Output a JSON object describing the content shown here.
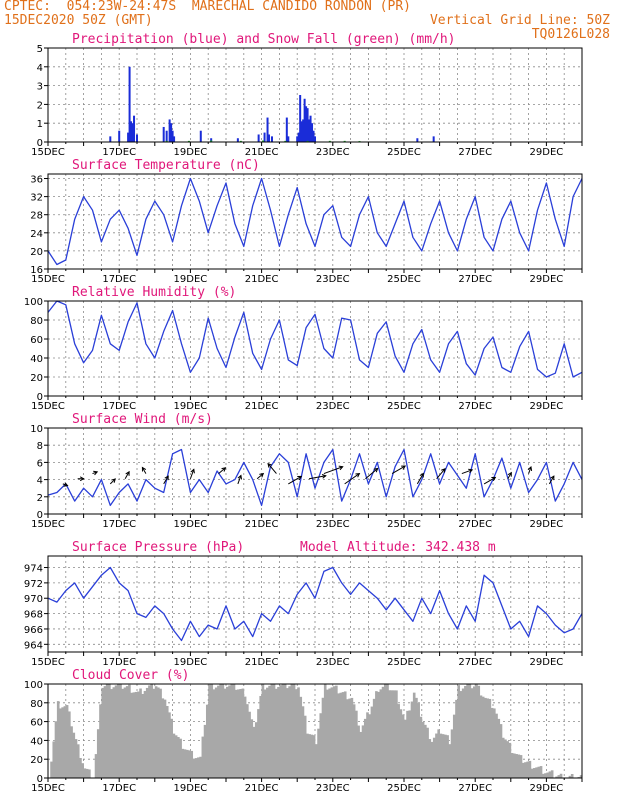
{
  "header": {
    "left1": "CPTEC:  054:23W-24:47S  MARECHAL CANDIDO RONDON (PR)",
    "left2": "15DEC2020 50Z (GMT)",
    "right2": "Vertical Grid Line: 50Z",
    "right3": "TQ0126L028"
  },
  "colors": {
    "title": "#e0177a",
    "line": "#2a3fd8",
    "precip": "#1a2cd8",
    "snow": "#1fae2a",
    "cloud": "#a8a8a8",
    "grid": "#8a8a8a",
    "header": "#e0701a"
  },
  "chart_data": [
    {
      "type": "bar",
      "title": "Precipitation (blue) and Snow Fall (green) (mm/h)",
      "x_ticks": [
        "15DEC",
        "17DEC",
        "19DEC",
        "21DEC",
        "23DEC",
        "25DEC",
        "27DEC",
        "29DEC"
      ],
      "ylim": [
        0,
        5
      ],
      "y_ticks": [
        "0",
        "1",
        "2",
        "3",
        "4",
        "5"
      ],
      "x_unit": "hours since 15DEC 00Z",
      "series": [
        {
          "name": "Precipitation",
          "color": "#1a2cd8",
          "points": [
            [
              42,
              0.3
            ],
            [
              48,
              0.6
            ],
            [
              54,
              0.5
            ],
            [
              55,
              4.0
            ],
            [
              56,
              1.1
            ],
            [
              57,
              1.0
            ],
            [
              58,
              1.4
            ],
            [
              60,
              0.4
            ],
            [
              78,
              0.8
            ],
            [
              80,
              0.6
            ],
            [
              82,
              1.2
            ],
            [
              83,
              1.0
            ],
            [
              84,
              0.6
            ],
            [
              85,
              0.3
            ],
            [
              103,
              0.6
            ],
            [
              110,
              0.2
            ],
            [
              128,
              0.2
            ],
            [
              142,
              0.4
            ],
            [
              146,
              0.5
            ],
            [
              148,
              1.3
            ],
            [
              149,
              0.4
            ],
            [
              151,
              0.3
            ],
            [
              161,
              1.3
            ],
            [
              162,
              0.3
            ],
            [
              168,
              0.3
            ],
            [
              169,
              0.5
            ],
            [
              170,
              2.5
            ],
            [
              171,
              1.1
            ],
            [
              172,
              1.2
            ],
            [
              173,
              2.3
            ],
            [
              174,
              1.9
            ],
            [
              175,
              1.8
            ],
            [
              176,
              1.2
            ],
            [
              177,
              1.4
            ],
            [
              178,
              1.0
            ],
            [
              179,
              0.6
            ],
            [
              180,
              0.3
            ],
            [
              249,
              0.2
            ],
            [
              260,
              0.3
            ]
          ]
        },
        {
          "name": "Snow Fall",
          "color": "#1fae2a",
          "points": [
            [
              80,
              0.06
            ],
            [
              95,
              0.06
            ],
            [
              110,
              0.08
            ],
            [
              130,
              0.06
            ],
            [
              145,
              0.08
            ],
            [
              160,
              0.06
            ],
            [
              175,
              0.06
            ],
            [
              190,
              0.06
            ],
            [
              200,
              0.06
            ],
            [
              210,
              0.05
            ]
          ]
        }
      ]
    },
    {
      "type": "line",
      "title": "Surface Temperature (nC)",
      "x_ticks": [
        "15DEC",
        "17DEC",
        "19DEC",
        "21DEC",
        "23DEC",
        "25DEC",
        "27DEC",
        "29DEC"
      ],
      "ylim": [
        16,
        37
      ],
      "y_ticks": [
        "16",
        "20",
        "24",
        "28",
        "32",
        "36"
      ],
      "x_unit": "hours since 15DEC 00Z",
      "x": [
        0,
        6,
        12,
        18,
        24,
        30,
        36,
        42,
        48,
        54,
        60,
        66,
        72,
        78,
        84,
        90,
        96,
        102,
        108,
        114,
        120,
        126,
        132,
        138,
        144,
        150,
        156,
        162,
        168,
        174,
        180,
        186,
        192,
        198,
        204,
        210,
        216,
        222,
        228,
        234,
        240,
        246,
        252,
        258,
        264,
        270,
        276,
        282,
        288,
        294,
        300,
        306,
        312,
        318,
        324,
        330,
        336,
        342,
        348,
        354,
        360
      ],
      "values": [
        20,
        17,
        18,
        27,
        32,
        29,
        22,
        27,
        29,
        25,
        19,
        27,
        31,
        28,
        22,
        30,
        36,
        31,
        24,
        30,
        35,
        26,
        21,
        30,
        36,
        29,
        21,
        28,
        34,
        26,
        21,
        28,
        30,
        23,
        21,
        28,
        32,
        24,
        21,
        26,
        31,
        23,
        20,
        26,
        31,
        24,
        20,
        27,
        32,
        23,
        20,
        27,
        31,
        24,
        20,
        29,
        35,
        27,
        21,
        32,
        36
      ]
    },
    {
      "type": "line",
      "title": "Relative Humidity (%)",
      "x_ticks": [
        "15DEC",
        "17DEC",
        "19DEC",
        "21DEC",
        "23DEC",
        "25DEC",
        "27DEC",
        "29DEC"
      ],
      "ylim": [
        0,
        100
      ],
      "y_ticks": [
        "0",
        "20",
        "40",
        "60",
        "80",
        "100"
      ],
      "x_unit": "hours since 15DEC 00Z",
      "x": [
        0,
        6,
        12,
        18,
        24,
        30,
        36,
        42,
        48,
        54,
        60,
        66,
        72,
        78,
        84,
        90,
        96,
        102,
        108,
        114,
        120,
        126,
        132,
        138,
        144,
        150,
        156,
        162,
        168,
        174,
        180,
        186,
        192,
        198,
        204,
        210,
        216,
        222,
        228,
        234,
        240,
        246,
        252,
        258,
        264,
        270,
        276,
        282,
        288,
        294,
        300,
        306,
        312,
        318,
        324,
        330,
        336,
        342,
        348,
        354,
        360
      ],
      "values": [
        88,
        100,
        96,
        55,
        35,
        48,
        85,
        55,
        48,
        78,
        98,
        55,
        40,
        68,
        90,
        55,
        25,
        40,
        82,
        50,
        30,
        62,
        88,
        45,
        28,
        60,
        80,
        38,
        32,
        72,
        86,
        50,
        40,
        82,
        80,
        38,
        30,
        66,
        78,
        42,
        25,
        55,
        70,
        38,
        25,
        55,
        68,
        34,
        22,
        50,
        62,
        30,
        25,
        52,
        68,
        28,
        20,
        24,
        55,
        20,
        25
      ]
    },
    {
      "type": "line",
      "title": "Surface Wind (m/s)",
      "x_ticks": [
        "15DEC",
        "17DEC",
        "19DEC",
        "21DEC",
        "23DEC",
        "25DEC",
        "27DEC",
        "29DEC"
      ],
      "ylim": [
        0,
        10
      ],
      "y_ticks": [
        "0",
        "2",
        "4",
        "6",
        "8",
        "10"
      ],
      "x_unit": "hours since 15DEC 00Z",
      "x": [
        0,
        6,
        12,
        18,
        24,
        30,
        36,
        42,
        48,
        54,
        60,
        66,
        72,
        78,
        84,
        90,
        96,
        102,
        108,
        114,
        120,
        126,
        132,
        138,
        144,
        150,
        156,
        162,
        168,
        174,
        180,
        186,
        192,
        198,
        204,
        210,
        216,
        222,
        228,
        234,
        240,
        246,
        252,
        258,
        264,
        270,
        276,
        282,
        288,
        294,
        300,
        306,
        312,
        318,
        324,
        330,
        336,
        342,
        348,
        354,
        360
      ],
      "values": [
        2.2,
        2.5,
        3.5,
        1.5,
        3,
        2,
        4,
        1,
        2.5,
        3.5,
        1.5,
        4,
        3,
        2.5,
        7,
        7.5,
        2.5,
        4,
        2.5,
        5,
        3.5,
        4,
        6,
        4,
        1,
        5.5,
        7,
        6,
        2,
        7,
        3,
        6,
        7.5,
        1.5,
        4,
        7,
        3.5,
        6,
        2,
        5.5,
        7.5,
        2,
        4,
        7,
        3.5,
        6,
        4.5,
        3,
        7,
        2,
        4,
        6.5,
        3,
        6,
        2.5,
        4,
        6,
        1.5,
        3.5,
        6,
        4
      ],
      "arrow_x": [
        10,
        20,
        30,
        42,
        52,
        66,
        78,
        96,
        115,
        128,
        141,
        154,
        162,
        176,
        186,
        200,
        214,
        232,
        249,
        262,
        279,
        294,
        310,
        324,
        338
      ],
      "arrow_dir": [
        20,
        0,
        -20,
        -45,
        -60,
        -120,
        -60,
        -70,
        -40,
        -70,
        -40,
        -130,
        -30,
        -10,
        -20,
        -35,
        -40,
        -30,
        -60,
        -50,
        -20,
        -30,
        -60,
        -70,
        -60
      ],
      "arrow_len": [
        5,
        6,
        5,
        7,
        8,
        7,
        9,
        10,
        9,
        9,
        8,
        13,
        15,
        17,
        20,
        18,
        16,
        15,
        12,
        13,
        11,
        13,
        7,
        7,
        9
      ]
    },
    {
      "type": "line",
      "title": "Surface Pressure (hPa)",
      "annotation": "Model Altitude: 342.438 m",
      "x_ticks": [
        "15DEC",
        "17DEC",
        "19DEC",
        "21DEC",
        "23DEC",
        "25DEC",
        "27DEC",
        "29DEC"
      ],
      "ylim": [
        963,
        975.5
      ],
      "y_ticks": [
        "964",
        "966",
        "968",
        "970",
        "972",
        "974"
      ],
      "x_unit": "hours since 15DEC 00Z",
      "x": [
        0,
        6,
        12,
        18,
        24,
        30,
        36,
        42,
        48,
        54,
        60,
        66,
        72,
        78,
        84,
        90,
        96,
        102,
        108,
        114,
        120,
        126,
        132,
        138,
        144,
        150,
        156,
        162,
        168,
        174,
        180,
        186,
        192,
        198,
        204,
        210,
        216,
        222,
        228,
        234,
        240,
        246,
        252,
        258,
        264,
        270,
        276,
        282,
        288,
        294,
        300,
        306,
        312,
        318,
        324,
        330,
        336,
        342,
        348,
        354,
        360
      ],
      "values": [
        970,
        969.5,
        971,
        972,
        970,
        971.5,
        973,
        974,
        972,
        971,
        968,
        967.5,
        969,
        968,
        966,
        964.5,
        967,
        965,
        966.5,
        966,
        969,
        966,
        967,
        965,
        968,
        967,
        969,
        968,
        970.5,
        972,
        970,
        973.5,
        974,
        972,
        970.5,
        972,
        971,
        970,
        968.5,
        970,
        968.5,
        967,
        970,
        968,
        971,
        968,
        966,
        969,
        967,
        973,
        972,
        969,
        966,
        967,
        965,
        969,
        968,
        966.5,
        965.5,
        966,
        968
      ]
    },
    {
      "type": "bar",
      "title": "Cloud Cover (%)",
      "x_ticks": [
        "15DEC",
        "17DEC",
        "19DEC",
        "21DEC",
        "23DEC",
        "25DEC",
        "27DEC",
        "29DEC"
      ],
      "ylim": [
        0,
        100
      ],
      "y_ticks": [
        "0",
        "20",
        "40",
        "60",
        "80",
        "100"
      ],
      "x_unit": "hours since 15DEC 00Z",
      "x": [
        0,
        6,
        12,
        18,
        24,
        30,
        36,
        42,
        48,
        54,
        60,
        66,
        72,
        78,
        84,
        90,
        96,
        102,
        108,
        114,
        120,
        126,
        132,
        138,
        144,
        150,
        156,
        162,
        168,
        174,
        180,
        186,
        192,
        198,
        204,
        210,
        216,
        222,
        228,
        234,
        240,
        246,
        252,
        258,
        264,
        270,
        276,
        282,
        288,
        294,
        300,
        306,
        312,
        318,
        324,
        330,
        336,
        342,
        348,
        354,
        360
      ],
      "values": [
        0,
        78,
        75,
        40,
        10,
        0,
        98,
        98,
        98,
        96,
        90,
        95,
        98,
        85,
        50,
        35,
        25,
        20,
        98,
        98,
        98,
        96,
        90,
        50,
        98,
        98,
        98,
        98,
        98,
        50,
        40,
        98,
        95,
        90,
        85,
        50,
        70,
        95,
        98,
        90,
        60,
        90,
        60,
        40,
        50,
        40,
        95,
        98,
        98,
        85,
        75,
        45,
        30,
        20,
        15,
        10,
        5,
        2,
        0,
        0,
        0
      ]
    }
  ]
}
